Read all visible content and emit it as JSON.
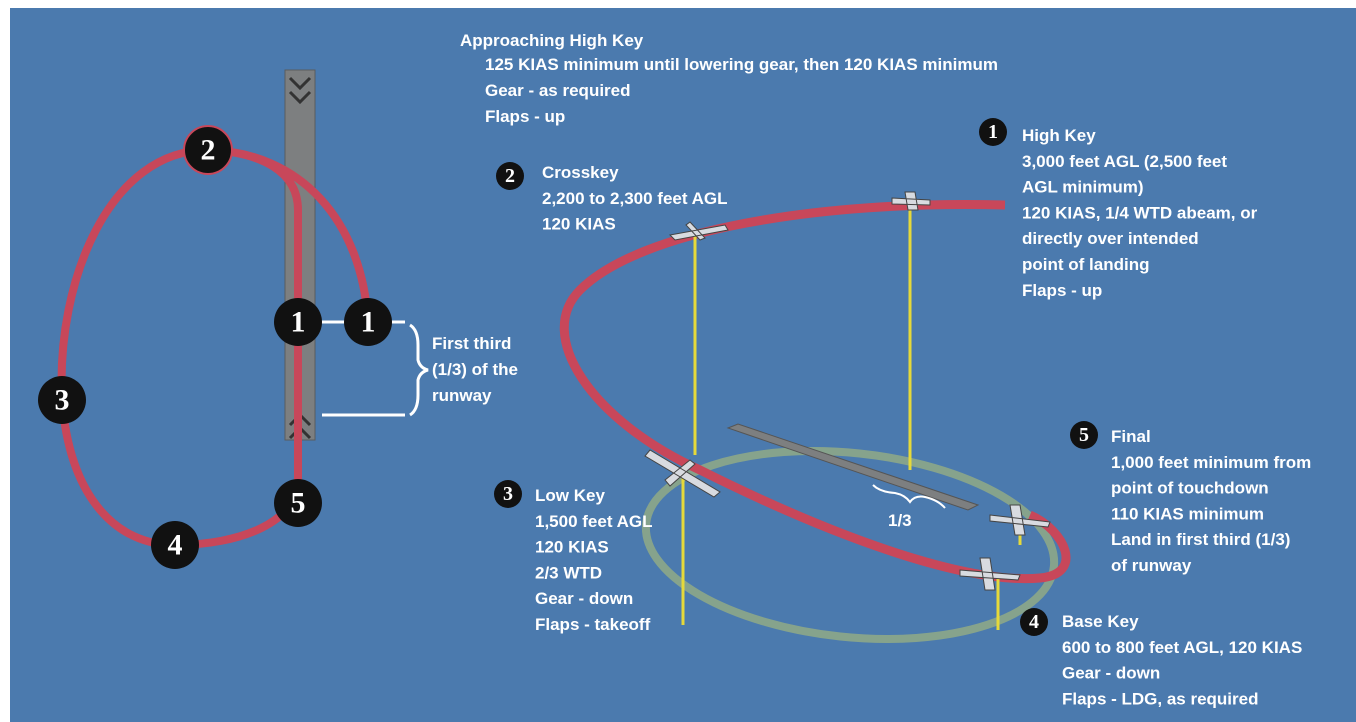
{
  "approach": {
    "title": "Approaching High Key",
    "lines": [
      "125 KIAS minimum until lowering gear, then 120 KIAS minimum",
      "Gear - as required",
      "Flaps - up"
    ]
  },
  "left_diagram": {
    "markers": [
      "2",
      "1",
      "1",
      "3",
      "4",
      "5"
    ],
    "note": [
      "First third",
      "(1/3) of the",
      "runway"
    ]
  },
  "keys": [
    {
      "number": "1",
      "title": "High Key",
      "lines": [
        "3,000 feet AGL  (2,500 feet",
        "AGL minimum)",
        "120 KIAS, 1/4 WTD abeam, or",
        "directly over intended",
        "point of landing",
        "Flaps - up"
      ]
    },
    {
      "number": "2",
      "title": "Crosskey",
      "lines": [
        "2,200 to 2,300 feet AGL",
        "120 KIAS"
      ]
    },
    {
      "number": "3",
      "title": "Low Key",
      "lines": [
        "1,500 feet AGL",
        "120 KIAS",
        "2/3 WTD",
        "Gear - down",
        "Flaps - takeoff"
      ]
    },
    {
      "number": "4",
      "title": "Base Key",
      "lines": [
        "600 to 800 feet AGL, 120 KIAS",
        "Gear - down",
        "Flaps - LDG, as required"
      ]
    },
    {
      "number": "5",
      "title": "Final",
      "lines": [
        "1,000 feet minimum from",
        "point of touchdown",
        "110 KIAS minimum",
        "Land in first third (1/3)",
        "of runway"
      ]
    }
  ],
  "runway_label": "1/3"
}
